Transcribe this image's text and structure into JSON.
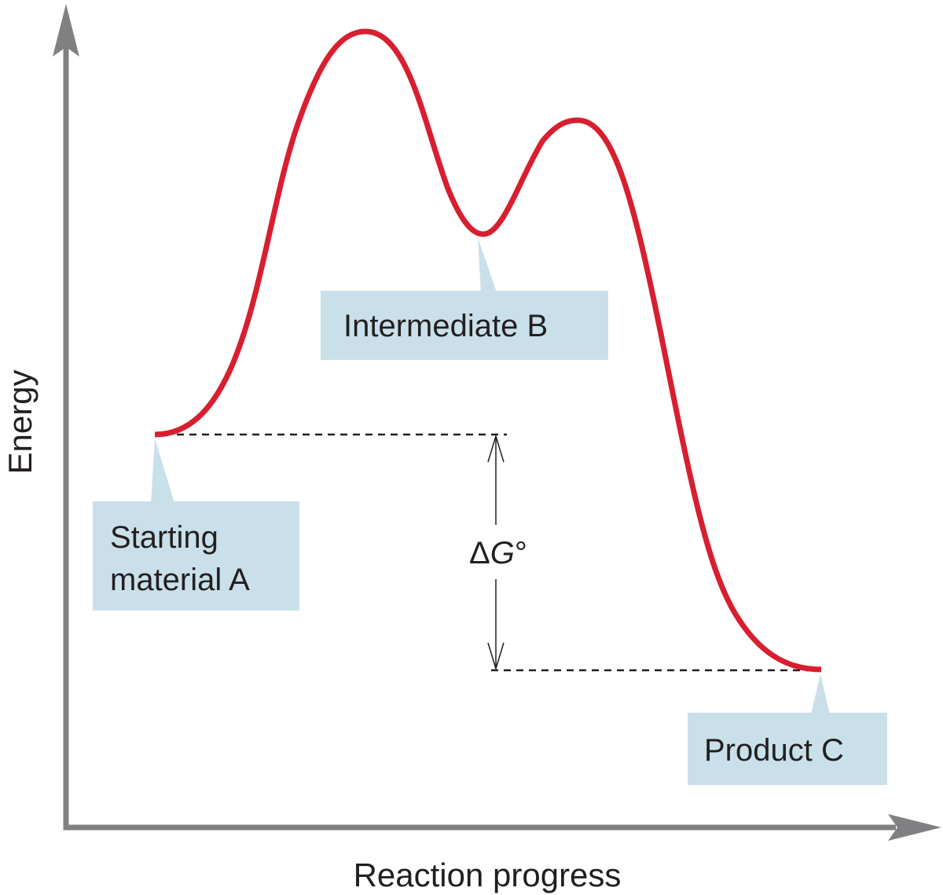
{
  "axes": {
    "x_label": "Reaction progress",
    "y_label": "Energy"
  },
  "labels": {
    "starting_line1": "Starting",
    "starting_line2": "material A",
    "intermediate": "Intermediate B",
    "product": "Product C"
  },
  "delta_g": {
    "symbol": "Δ",
    "variable": "G",
    "degree": "°"
  },
  "colors": {
    "curve": "#d71f30",
    "axis": "#808083",
    "callout_fill": "#c9e0ea",
    "text": "#231f20",
    "dash": "#231f20"
  }
}
